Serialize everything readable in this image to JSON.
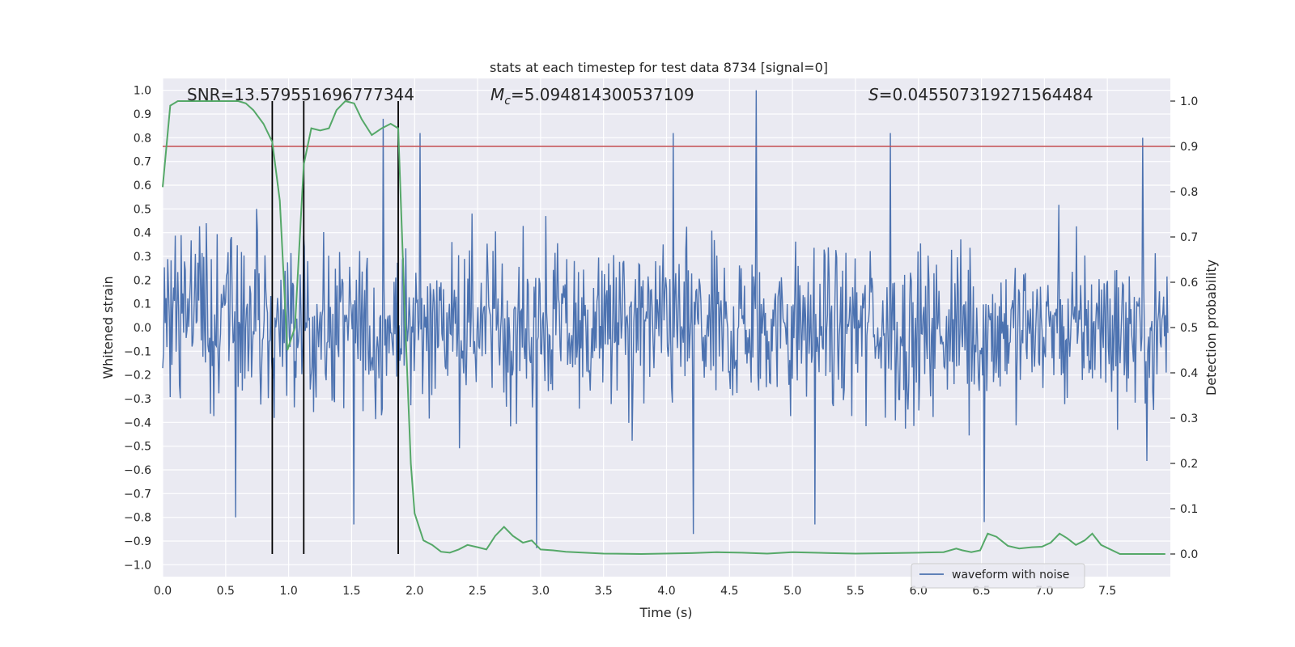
{
  "chart_data": {
    "type": "line",
    "title": "stats at each timestep for test data 8734 [signal=0]",
    "xlabel": "Time (s)",
    "ylabel_left": "Whitened strain",
    "ylabel_right": "Detection probability",
    "xlim": [
      0.0,
      8.0
    ],
    "ylim_left": [
      -1.05,
      1.05
    ],
    "ylim_right": [
      -0.05,
      1.05
    ],
    "x_ticks": [
      0.0,
      0.5,
      1.0,
      1.5,
      2.0,
      2.5,
      3.0,
      3.5,
      4.0,
      4.5,
      5.0,
      5.5,
      6.0,
      6.5,
      7.0,
      7.5
    ],
    "x_tick_labels": [
      "0.0",
      "0.5",
      "1.0",
      "1.5",
      "2.0",
      "2.5",
      "3.0",
      "3.5",
      "4.0",
      "4.5",
      "5.0",
      "5.5",
      "6.0",
      "6.5",
      "7.0",
      "7.5"
    ],
    "y_left_ticks": [
      1.0,
      0.9,
      0.8,
      0.7,
      0.6,
      0.5,
      0.4,
      0.3,
      0.2,
      0.1,
      0.0,
      -0.1,
      -0.2,
      -0.3,
      -0.4,
      -0.5,
      -0.6,
      -0.7,
      -0.8,
      -0.9,
      -1.0
    ],
    "y_left_tick_labels": [
      "1.0",
      "0.9",
      "0.8",
      "0.7",
      "0.6",
      "0.5",
      "0.4",
      "0.3",
      "0.2",
      "0.1",
      "0.0",
      "−0.1",
      "−0.2",
      "−0.3",
      "−0.4",
      "−0.5",
      "−0.6",
      "−0.7",
      "−0.8",
      "−0.9",
      "−1.0"
    ],
    "y_right_ticks": [
      1.0,
      0.9,
      0.8,
      0.7,
      0.6,
      0.5,
      0.4,
      0.3,
      0.2,
      0.1,
      0.0
    ],
    "y_right_tick_labels": [
      "1.0",
      "0.9",
      "0.8",
      "0.7",
      "0.6",
      "0.5",
      "0.4",
      "0.3",
      "0.2",
      "0.1",
      "0.0"
    ],
    "annotations": {
      "snr": "SNR=13.579551696777344",
      "mc_symbol": "M",
      "mc_sub": "c",
      "mc_value": "=5.094814300537109",
      "s_symbol": "S",
      "s_value": "=0.045507319271564484"
    },
    "threshold": {
      "value": 0.9,
      "axis": "right",
      "color": "#c44e52"
    },
    "vertical_lines": [
      0.87,
      1.12,
      1.87
    ],
    "vertical_line_range": [
      0.0,
      1.0
    ],
    "legend": {
      "label": "waveform with noise",
      "position": "lower-right"
    },
    "waveform": {
      "name": "waveform with noise",
      "color": "#4c72b0",
      "x_start": 0.0,
      "x_end": 7.98,
      "points": 1200,
      "typical_amplitude": 0.33,
      "envelope_min": -0.93,
      "envelope_max": 1.0,
      "notable_peaks": [
        {
          "x": 4.71,
          "y": 1.0
        },
        {
          "x": 1.75,
          "y": 0.88
        },
        {
          "x": 2.04,
          "y": 0.82
        },
        {
          "x": 4.05,
          "y": 0.82
        },
        {
          "x": 5.78,
          "y": 0.82
        },
        {
          "x": 2.97,
          "y": -0.93
        },
        {
          "x": 4.21,
          "y": -0.87
        },
        {
          "x": 6.52,
          "y": -0.82
        },
        {
          "x": 0.58,
          "y": -0.8
        },
        {
          "x": 1.52,
          "y": -0.83
        },
        {
          "x": 5.18,
          "y": -0.83
        }
      ]
    },
    "detection_probability": {
      "name": "detection probability",
      "color": "#55a868",
      "axis": "right",
      "x": [
        0.0,
        0.06,
        0.12,
        0.2,
        0.3,
        0.4,
        0.5,
        0.6,
        0.66,
        0.72,
        0.8,
        0.87,
        0.93,
        0.99,
        1.05,
        1.12,
        1.18,
        1.25,
        1.32,
        1.38,
        1.45,
        1.52,
        1.58,
        1.66,
        1.74,
        1.81,
        1.87,
        1.92,
        1.97,
        2.0,
        2.07,
        2.14,
        2.21,
        2.28,
        2.35,
        2.42,
        2.5,
        2.57,
        2.64,
        2.71,
        2.78,
        2.86,
        2.93,
        3.0,
        3.1,
        3.2,
        3.5,
        3.8,
        4.2,
        4.4,
        4.6,
        4.8,
        5.0,
        5.3,
        5.5,
        5.8,
        6.0,
        6.2,
        6.3,
        6.35,
        6.42,
        6.49,
        6.55,
        6.62,
        6.71,
        6.8,
        6.9,
        6.98,
        7.05,
        7.12,
        7.18,
        7.25,
        7.32,
        7.38,
        7.45,
        7.6,
        7.8,
        7.96
      ],
      "y": [
        0.81,
        0.99,
        1.0,
        1.0,
        1.0,
        1.0,
        1.0,
        1.0,
        0.995,
        0.98,
        0.95,
        0.91,
        0.78,
        0.45,
        0.5,
        0.86,
        0.94,
        0.935,
        0.94,
        0.98,
        1.0,
        0.995,
        0.96,
        0.925,
        0.94,
        0.95,
        0.94,
        0.55,
        0.2,
        0.09,
        0.03,
        0.02,
        0.005,
        0.003,
        0.01,
        0.02,
        0.015,
        0.01,
        0.04,
        0.06,
        0.04,
        0.025,
        0.03,
        0.01,
        0.008,
        0.005,
        0.001,
        0.0,
        0.002,
        0.004,
        0.003,
        0.001,
        0.004,
        0.002,
        0.001,
        0.002,
        0.003,
        0.004,
        0.012,
        0.008,
        0.004,
        0.008,
        0.045,
        0.038,
        0.018,
        0.012,
        0.015,
        0.016,
        0.025,
        0.045,
        0.035,
        0.02,
        0.03,
        0.045,
        0.02,
        0.0,
        0.0,
        0.0
      ]
    }
  }
}
